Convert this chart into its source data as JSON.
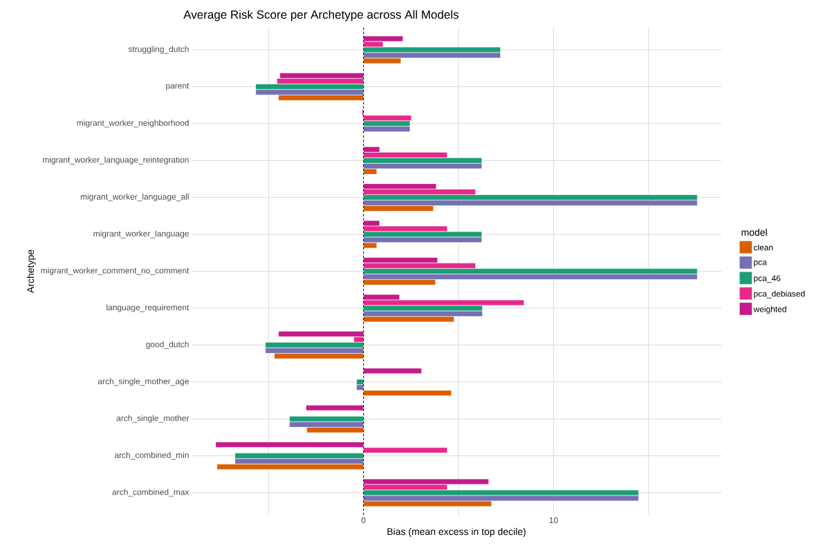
{
  "chart_data": {
    "type": "bar",
    "orientation": "horizontal",
    "title": "Average Risk Score per Archetype across All Models",
    "xlabel": "Bias (mean excess in top decile)",
    "ylabel": "Archetype",
    "legend_title": "model",
    "categories": [
      "struggling_dutch",
      "parent",
      "migrant_worker_neighborhood",
      "migrant_worker_language_reintegration",
      "migrant_worker_language_all",
      "migrant_worker_language",
      "migrant_worker_comment_no_comment",
      "language_requirement",
      "good_dutch",
      "arch_single_mother_age",
      "arch_single_mother",
      "arch_combined_min",
      "arch_combined_max"
    ],
    "series": [
      {
        "name": "clean",
        "color": "#d95f02",
        "values": [
          1.96,
          -4.47,
          null,
          0.69,
          3.67,
          0.69,
          3.78,
          4.76,
          -4.69,
          4.62,
          -2.98,
          -7.71,
          6.73
        ]
      },
      {
        "name": "pca",
        "color": "#7570b3",
        "values": [
          7.2,
          -5.67,
          2.44,
          6.22,
          17.56,
          6.22,
          17.56,
          6.25,
          -5.16,
          -0.36,
          -3.89,
          -6.76,
          14.47
        ]
      },
      {
        "name": "pca_46",
        "color": "#1b9e77",
        "values": [
          7.2,
          -5.67,
          2.44,
          6.22,
          17.56,
          6.22,
          17.56,
          6.25,
          -5.16,
          -0.36,
          -3.89,
          -6.76,
          14.47
        ]
      },
      {
        "name": "pca_debiased",
        "color": "#e7298a",
        "values": [
          1.02,
          -4.55,
          2.51,
          4.4,
          5.89,
          4.4,
          5.89,
          8.44,
          -0.51,
          null,
          null,
          4.4,
          4.4
        ]
      },
      {
        "name": "weighted",
        "color": "#c51b8a",
        "values": [
          2.07,
          -4.4,
          -0.07,
          0.84,
          3.82,
          0.84,
          3.89,
          1.89,
          -4.47,
          3.05,
          -3.02,
          -7.78,
          6.58
        ]
      }
    ],
    "xlim": [
      -9.05,
      18.83
    ],
    "xticks": [
      {
        "value": -5,
        "label": null
      },
      0,
      {
        "value": 5,
        "label": null
      },
      10,
      {
        "value": 15,
        "label": null
      }
    ],
    "ref_lines": [
      {
        "axis": "x",
        "value": 0,
        "color": "#000000",
        "line_style": "dashed"
      }
    ],
    "grid": true,
    "legend": "right"
  }
}
